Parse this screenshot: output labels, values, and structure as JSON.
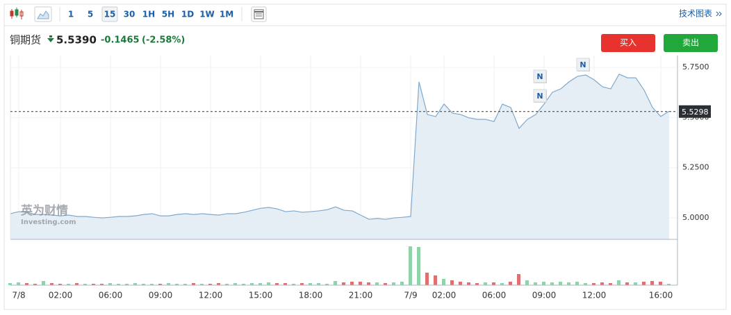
{
  "toolbar": {
    "timeframes": [
      "1",
      "5",
      "15",
      "30",
      "1H",
      "5H",
      "1D",
      "1W",
      "1M"
    ],
    "selected": 2,
    "link": "技术图表"
  },
  "header": {
    "name": "铜期货",
    "price": "5.5390",
    "change": "-0.1465",
    "change_pct": "(-2.58%)"
  },
  "buttons": {
    "buy": "买入",
    "sell": "卖出"
  },
  "chart_data": {
    "type": "area",
    "categories": [
      null,
      "7/8",
      null,
      null,
      null,
      null,
      "02:00",
      null,
      null,
      null,
      null,
      null,
      "06:00",
      null,
      null,
      null,
      null,
      null,
      "09:00",
      null,
      null,
      null,
      null,
      null,
      "12:00",
      null,
      null,
      null,
      null,
      null,
      "15:00",
      null,
      null,
      null,
      null,
      null,
      "18:00",
      null,
      null,
      null,
      null,
      null,
      "21:00",
      null,
      null,
      null,
      null,
      null,
      "7/9",
      null,
      null,
      null,
      "02:00",
      null,
      null,
      null,
      null,
      null,
      "06:00",
      null,
      null,
      null,
      null,
      null,
      "09:00",
      null,
      null,
      null,
      null,
      null,
      "12:00",
      null,
      null,
      null,
      null,
      null,
      null,
      null,
      "16:00",
      null
    ],
    "series": [
      {
        "color": "#7fa8cc",
        "fill": "#e6eef5",
        "values": [
          5.021,
          5.031,
          5.028,
          5.017,
          5.017,
          5.014,
          5.01,
          5.014,
          5.007,
          5.007,
          5.003,
          5.0,
          5.003,
          5.007,
          5.007,
          5.01,
          5.017,
          5.021,
          5.01,
          5.01,
          5.017,
          5.021,
          5.017,
          5.021,
          5.017,
          5.014,
          5.021,
          5.021,
          5.028,
          5.038,
          5.048,
          5.052,
          5.045,
          5.031,
          5.035,
          5.028,
          5.031,
          5.035,
          5.041,
          5.055,
          5.038,
          5.035,
          5.014,
          4.993,
          4.997,
          4.993,
          5.0,
          5.003,
          5.007,
          5.678,
          5.515,
          5.505,
          5.567,
          5.522,
          5.515,
          5.498,
          5.491,
          5.491,
          5.48,
          5.567,
          5.55,
          5.446,
          5.491,
          5.515,
          5.567,
          5.626,
          5.643,
          5.678,
          5.705,
          5.712,
          5.688,
          5.653,
          5.643,
          5.716,
          5.698,
          5.698,
          5.636,
          5.55,
          5.505,
          5.532
        ]
      },
      {
        "type": "bar",
        "axis": "y2",
        "up_color": "#8fd4a8",
        "down_color": "#e07070",
        "values": [
          3,
          4,
          3,
          2,
          6,
          3,
          2,
          2,
          3,
          2,
          2,
          2,
          3,
          2,
          2,
          3,
          2,
          2,
          2,
          3,
          2,
          2,
          3,
          2,
          2,
          3,
          2,
          3,
          2,
          3,
          3,
          4,
          3,
          3,
          2,
          3,
          3,
          3,
          2,
          6,
          4,
          5,
          5,
          4,
          4,
          3,
          4,
          5,
          56,
          55,
          18,
          14,
          9,
          7,
          5,
          4,
          3,
          4,
          4,
          3,
          5,
          16,
          7,
          4,
          5,
          4,
          5,
          4,
          5,
          3,
          3,
          4,
          3,
          7,
          4,
          4,
          5,
          6,
          5,
          2
        ]
      }
    ],
    "ylim": [
      4.893,
      5.809
    ],
    "yticks": [
      {
        "value": 5,
        "label": "5.0000"
      },
      {
        "value": 5.25,
        "label": "5.2500"
      },
      {
        "value": 5.5,
        "label": "5.5000"
      },
      {
        "value": 5.75,
        "label": "5.7500"
      }
    ],
    "y2lim": [
      0,
      60
    ],
    "grid": true,
    "last_value": 5.5298,
    "events": [
      "N",
      "N",
      "N"
    ],
    "watermark": [
      "英为财情",
      "Investing.com"
    ]
  }
}
